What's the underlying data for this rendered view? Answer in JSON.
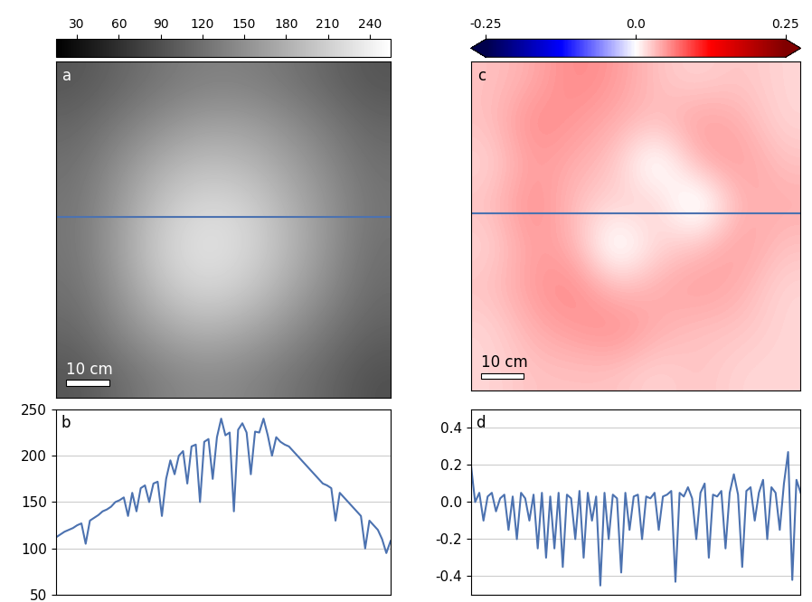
{
  "chart_data": [
    {
      "type": "heatmap",
      "title": "a",
      "annotation": "10 cm",
      "color": "gray",
      "cells": [
        [
          95,
          110,
          125,
          135,
          135,
          125,
          110,
          95
        ],
        [
          110,
          130,
          150,
          165,
          165,
          150,
          130,
          110
        ],
        [
          120,
          150,
          180,
          195,
          190,
          170,
          145,
          120
        ],
        [
          125,
          160,
          200,
          220,
          215,
          185,
          155,
          125
        ],
        [
          125,
          165,
          210,
          230,
          220,
          190,
          155,
          120
        ],
        [
          120,
          155,
          195,
          215,
          205,
          175,
          145,
          115
        ],
        [
          110,
          140,
          165,
          180,
          170,
          150,
          125,
          105
        ],
        [
          95,
          115,
          135,
          145,
          140,
          125,
          110,
          90
        ]
      ],
      "color_range": [
        15,
        255
      ],
      "color_ticks": [
        30,
        60,
        90,
        120,
        150,
        180,
        210,
        240
      ],
      "profile_row": 3.2,
      "tick_labels": false
    },
    {
      "type": "line",
      "title": "b",
      "color": "#4c72b0",
      "grid": true,
      "tick_labels": "y",
      "x": [
        0,
        1,
        2,
        3,
        4,
        5,
        6,
        7,
        8,
        9,
        10,
        11,
        12,
        13,
        14,
        15,
        16,
        17,
        18,
        19,
        20,
        21,
        22,
        23,
        24,
        25,
        26,
        27,
        28,
        29,
        30,
        31,
        32,
        33,
        34,
        35,
        36,
        37,
        38,
        39,
        40,
        41,
        42,
        43,
        44,
        45,
        46,
        47,
        48,
        49,
        50,
        51,
        52,
        53,
        54,
        55,
        56,
        57,
        58,
        59,
        60,
        61,
        62,
        63,
        64,
        65,
        66,
        67,
        68,
        69,
        70,
        71,
        72,
        73,
        74,
        75,
        76,
        77,
        78,
        79
      ],
      "values": [
        112,
        115,
        118,
        120,
        122,
        125,
        127,
        105,
        130,
        133,
        136,
        140,
        142,
        145,
        150,
        152,
        155,
        135,
        160,
        140,
        165,
        168,
        150,
        170,
        172,
        135,
        175,
        195,
        180,
        200,
        205,
        170,
        210,
        212,
        150,
        215,
        218,
        175,
        220,
        240,
        222,
        225,
        140,
        228,
        235,
        225,
        180,
        226,
        225,
        240,
        222,
        200,
        220,
        215,
        212,
        210,
        205,
        200,
        195,
        190,
        185,
        180,
        175,
        170,
        168,
        165,
        130,
        160,
        155,
        150,
        145,
        140,
        135,
        100,
        130,
        125,
        120,
        110,
        95,
        108
      ],
      "xlim": [
        0,
        79
      ],
      "xticks": [],
      "ylim": [
        50,
        250
      ],
      "yticks": [
        50,
        100,
        150,
        200,
        250
      ]
    },
    {
      "type": "heatmap",
      "title": "c",
      "annotation": "10 cm",
      "color": "seismic",
      "cells": [
        [
          0.03,
          0.04,
          0.06,
          0.05,
          0.03,
          0.02,
          0.03,
          0.02
        ],
        [
          0.03,
          0.06,
          0.05,
          0.04,
          0.03,
          0.05,
          0.04,
          0.02
        ],
        [
          0.02,
          0.05,
          0.04,
          0.03,
          -0.02,
          0.04,
          0.05,
          0.03
        ],
        [
          0.03,
          0.06,
          0.03,
          0.02,
          0.03,
          -0.03,
          0.04,
          0.04
        ],
        [
          0.02,
          0.05,
          0.04,
          -0.02,
          0.02,
          0.03,
          0.05,
          0.03
        ],
        [
          0.03,
          0.05,
          0.06,
          0.03,
          0.04,
          0.05,
          0.04,
          0.02
        ],
        [
          0.02,
          0.04,
          0.05,
          0.06,
          0.04,
          0.03,
          0.03,
          0.02
        ],
        [
          0.02,
          0.03,
          0.03,
          0.03,
          0.02,
          0.03,
          0.02,
          0.02
        ]
      ],
      "color_range": [
        -0.25,
        0.25
      ],
      "color_ticks": [
        -0.25,
        0.0,
        0.25
      ],
      "profile_row": 3.2,
      "tick_labels": false
    },
    {
      "type": "line",
      "title": "d",
      "color": "#4c72b0",
      "grid": true,
      "tick_labels": "y",
      "x": [
        0,
        1,
        2,
        3,
        4,
        5,
        6,
        7,
        8,
        9,
        10,
        11,
        12,
        13,
        14,
        15,
        16,
        17,
        18,
        19,
        20,
        21,
        22,
        23,
        24,
        25,
        26,
        27,
        28,
        29,
        30,
        31,
        32,
        33,
        34,
        35,
        36,
        37,
        38,
        39,
        40,
        41,
        42,
        43,
        44,
        45,
        46,
        47,
        48,
        49,
        50,
        51,
        52,
        53,
        54,
        55,
        56,
        57,
        58,
        59,
        60,
        61,
        62,
        63,
        64,
        65,
        66,
        67,
        68,
        69,
        70,
        71,
        72,
        73,
        74,
        75,
        76,
        77,
        78,
        79
      ],
      "values": [
        0.2,
        0.0,
        0.05,
        -0.1,
        0.03,
        0.05,
        -0.05,
        0.02,
        0.04,
        -0.15,
        0.03,
        -0.2,
        0.05,
        0.02,
        -0.1,
        0.04,
        -0.25,
        0.05,
        -0.3,
        0.03,
        -0.25,
        0.05,
        -0.35,
        0.04,
        0.02,
        -0.2,
        0.06,
        -0.3,
        0.05,
        -0.1,
        0.03,
        -0.45,
        0.05,
        -0.2,
        0.04,
        0.02,
        -0.38,
        0.05,
        -0.15,
        0.03,
        0.04,
        -0.2,
        0.03,
        0.02,
        0.05,
        -0.15,
        0.03,
        0.04,
        0.06,
        -0.43,
        0.05,
        0.03,
        0.08,
        0.02,
        -0.2,
        0.05,
        0.1,
        -0.3,
        0.04,
        0.03,
        0.06,
        -0.25,
        0.05,
        0.15,
        0.04,
        -0.35,
        0.06,
        0.08,
        -0.1,
        0.05,
        0.12,
        -0.2,
        0.08,
        0.05,
        -0.15,
        0.1,
        0.27,
        -0.42,
        0.12,
        0.05
      ],
      "xlim": [
        0,
        79
      ],
      "xticks": [],
      "ylim": [
        -0.5,
        0.5
      ],
      "yticks": [
        -0.4,
        -0.2,
        0.0,
        0.2,
        0.4
      ]
    }
  ]
}
